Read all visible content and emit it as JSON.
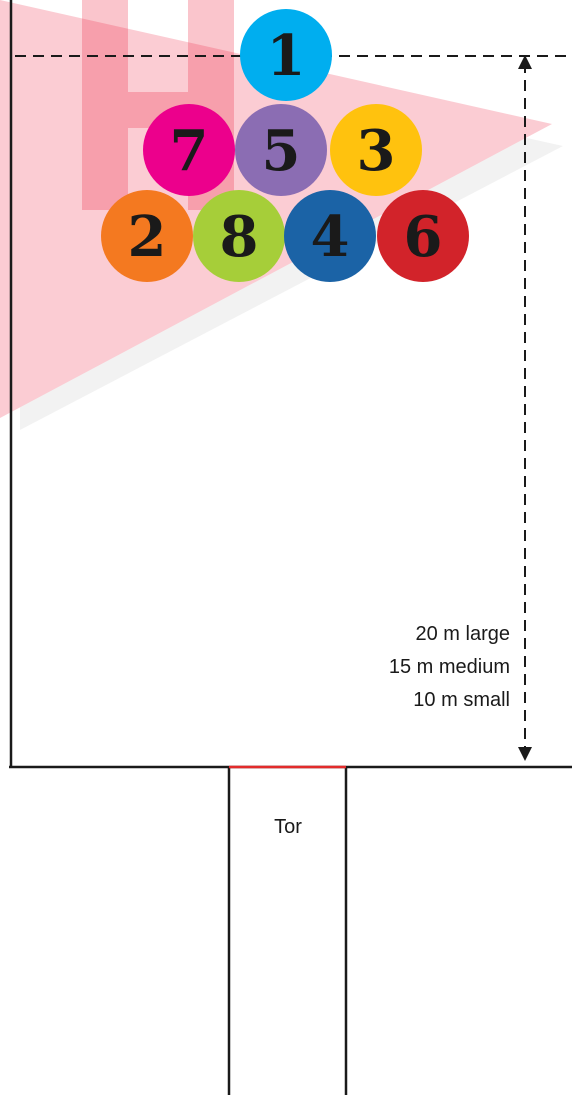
{
  "balls": [
    {
      "number": "1",
      "color": "#00aeef"
    },
    {
      "number": "7",
      "color": "#ec008c"
    },
    {
      "number": "5",
      "color": "#8b6db3"
    },
    {
      "number": "3",
      "color": "#ffc20e"
    },
    {
      "number": "2",
      "color": "#f47920"
    },
    {
      "number": "8",
      "color": "#a6ce39"
    },
    {
      "number": "4",
      "color": "#1b63a6"
    },
    {
      "number": "6",
      "color": "#d2232a"
    }
  ],
  "distance_labels": {
    "large": "20 m large",
    "medium": "15 m medium",
    "small": "10 m small"
  },
  "goal_label": "Tor",
  "colors": {
    "watermark": "#ee1d3a",
    "goal_line": "#e32b2b",
    "lines": "#1a1a1a"
  }
}
